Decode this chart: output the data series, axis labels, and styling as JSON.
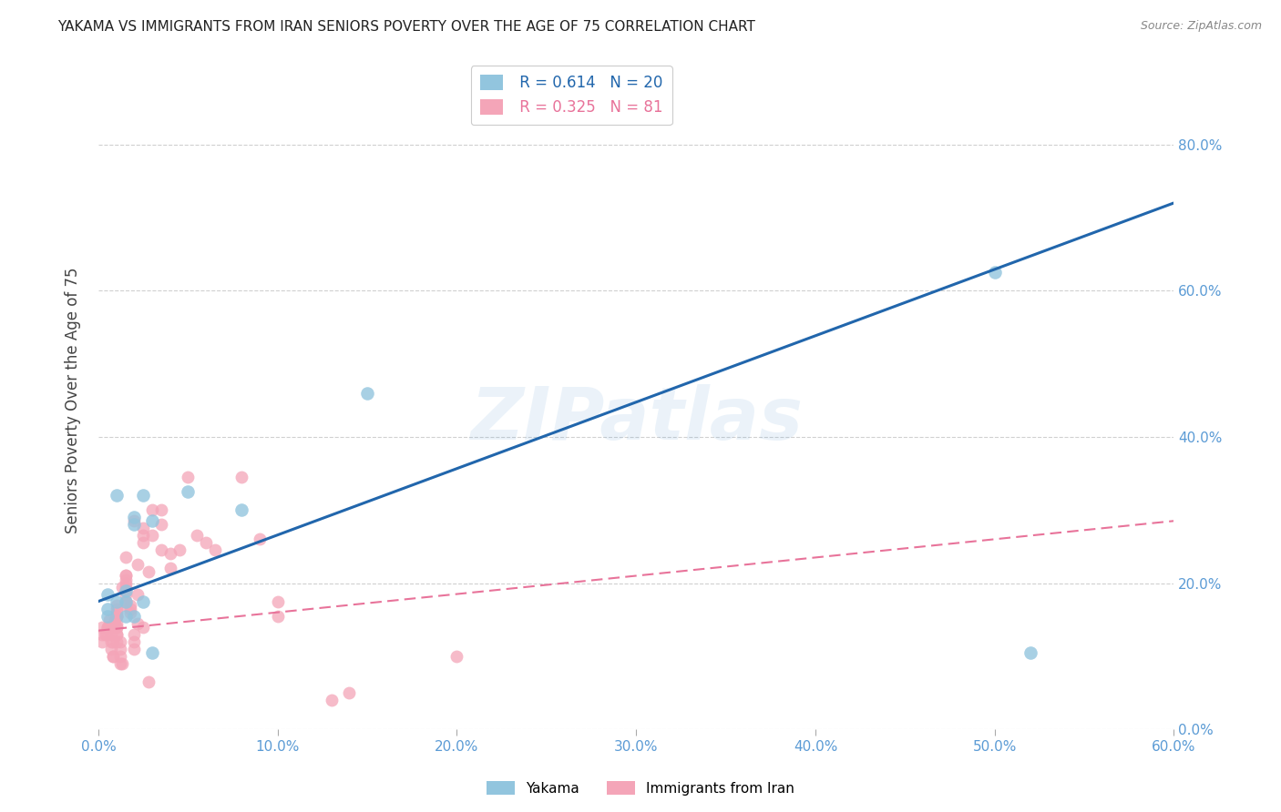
{
  "title": "YAKAMA VS IMMIGRANTS FROM IRAN SENIORS POVERTY OVER THE AGE OF 75 CORRELATION CHART",
  "source": "Source: ZipAtlas.com",
  "ylabel": "Seniors Poverty Over the Age of 75",
  "xlabel": "",
  "xlim": [
    0.0,
    0.6
  ],
  "ylim": [
    0.0,
    0.9
  ],
  "yticks": [
    0.0,
    0.2,
    0.4,
    0.6,
    0.8
  ],
  "xticks": [
    0.0,
    0.1,
    0.2,
    0.3,
    0.4,
    0.5,
    0.6
  ],
  "yakama_R": 0.614,
  "yakama_N": 20,
  "iran_R": 0.325,
  "iran_N": 81,
  "yakama_color": "#92C5DE",
  "iran_color": "#F4A5B8",
  "yakama_line_color": "#2166AC",
  "iran_line_color": "#E8739A",
  "watermark": "ZIPatlas",
  "background_color": "#ffffff",
  "grid_color": "#d0d0d0",
  "yakama_line_x": [
    0.0,
    0.6
  ],
  "yakama_line_y": [
    0.175,
    0.72
  ],
  "iran_line_x": [
    0.0,
    0.6
  ],
  "iran_line_y": [
    0.135,
    0.285
  ],
  "yakama_x": [
    0.005,
    0.005,
    0.005,
    0.01,
    0.01,
    0.015,
    0.015,
    0.015,
    0.02,
    0.02,
    0.02,
    0.025,
    0.025,
    0.03,
    0.03,
    0.05,
    0.08,
    0.15,
    0.5,
    0.52
  ],
  "yakama_y": [
    0.185,
    0.165,
    0.155,
    0.32,
    0.175,
    0.175,
    0.155,
    0.19,
    0.29,
    0.28,
    0.155,
    0.32,
    0.175,
    0.285,
    0.105,
    0.325,
    0.3,
    0.46,
    0.625,
    0.105
  ],
  "iran_x": [
    0.002,
    0.002,
    0.002,
    0.004,
    0.004,
    0.005,
    0.005,
    0.006,
    0.006,
    0.007,
    0.007,
    0.007,
    0.007,
    0.008,
    0.008,
    0.008,
    0.009,
    0.009,
    0.01,
    0.01,
    0.01,
    0.01,
    0.01,
    0.01,
    0.01,
    0.01,
    0.01,
    0.01,
    0.01,
    0.01,
    0.012,
    0.012,
    0.012,
    0.012,
    0.013,
    0.013,
    0.015,
    0.015,
    0.015,
    0.015,
    0.015,
    0.015,
    0.015,
    0.015,
    0.015,
    0.015,
    0.018,
    0.018,
    0.018,
    0.02,
    0.02,
    0.02,
    0.02,
    0.022,
    0.022,
    0.022,
    0.025,
    0.025,
    0.025,
    0.025,
    0.028,
    0.028,
    0.03,
    0.03,
    0.035,
    0.035,
    0.035,
    0.04,
    0.04,
    0.045,
    0.05,
    0.055,
    0.06,
    0.065,
    0.08,
    0.09,
    0.1,
    0.1,
    0.13,
    0.14,
    0.2
  ],
  "iran_y": [
    0.12,
    0.13,
    0.14,
    0.13,
    0.13,
    0.14,
    0.14,
    0.14,
    0.15,
    0.14,
    0.13,
    0.12,
    0.11,
    0.1,
    0.12,
    0.1,
    0.15,
    0.14,
    0.14,
    0.155,
    0.16,
    0.155,
    0.165,
    0.155,
    0.17,
    0.14,
    0.13,
    0.12,
    0.13,
    0.145,
    0.12,
    0.11,
    0.1,
    0.09,
    0.09,
    0.195,
    0.17,
    0.175,
    0.185,
    0.195,
    0.21,
    0.2,
    0.205,
    0.19,
    0.21,
    0.235,
    0.16,
    0.17,
    0.165,
    0.13,
    0.12,
    0.11,
    0.285,
    0.225,
    0.185,
    0.145,
    0.14,
    0.275,
    0.265,
    0.255,
    0.215,
    0.065,
    0.3,
    0.265,
    0.3,
    0.28,
    0.245,
    0.24,
    0.22,
    0.245,
    0.345,
    0.265,
    0.255,
    0.245,
    0.345,
    0.26,
    0.155,
    0.175,
    0.04,
    0.05,
    0.1
  ]
}
